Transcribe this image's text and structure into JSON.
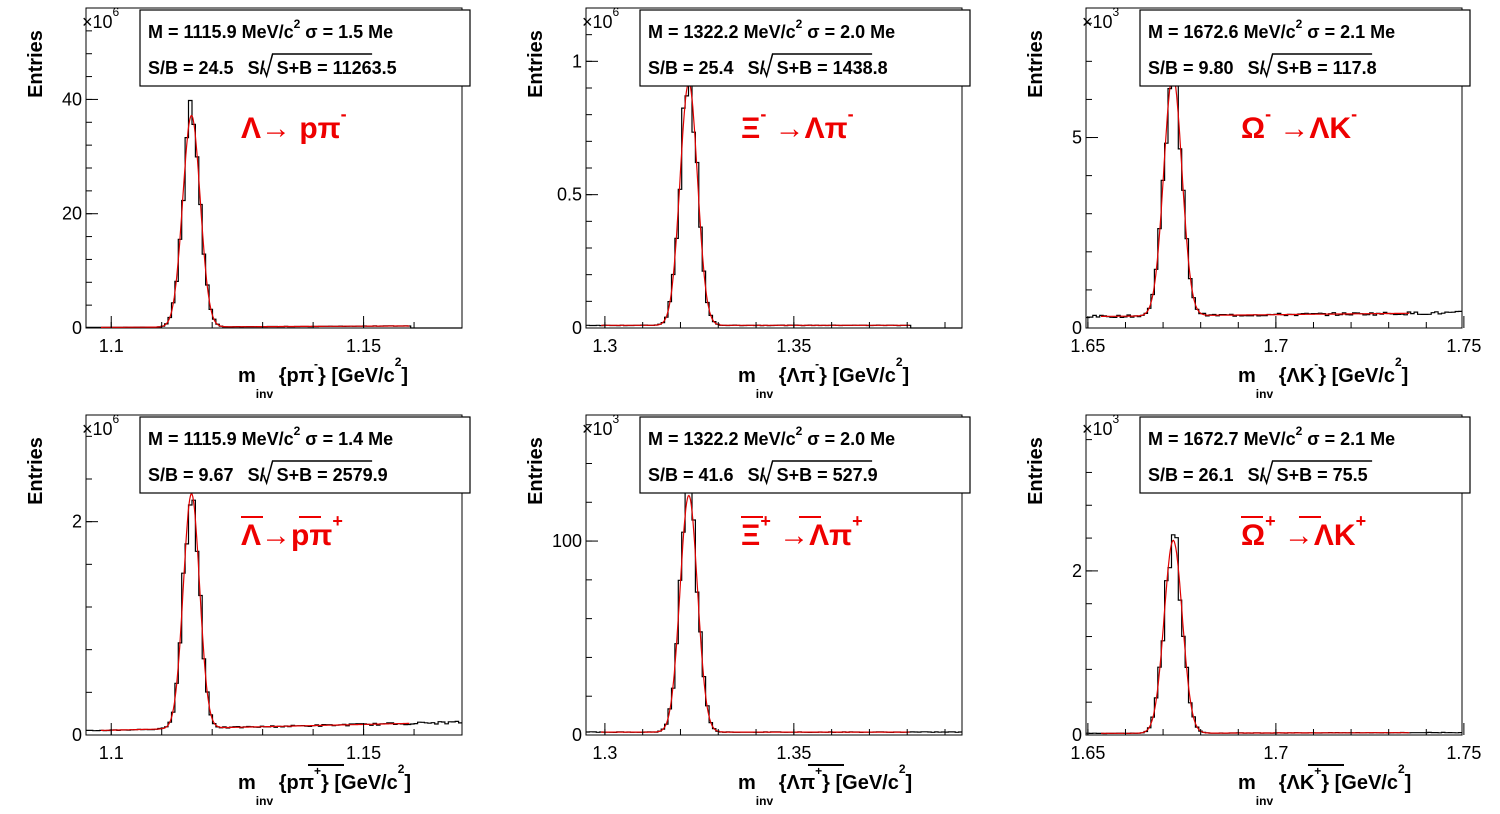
{
  "chart_data": [
    {
      "type": "line",
      "ylabel": "Entries",
      "xlabel": {
        "m": "m",
        "sub": "inv",
        "arg": "{pπ",
        "argsup": "-",
        "tail": "} [GeV/c",
        "tailsup": "2",
        "end": "]"
      },
      "xlim": [
        1.095,
        1.1695
      ],
      "xticks": [
        {
          "v": 1.1,
          "label": "1.1"
        },
        {
          "v": 1.15,
          "label": "1.15"
        }
      ],
      "ylim": [
        0,
        56
      ],
      "yticks": [
        {
          "v": 0,
          "label": "0"
        },
        {
          "v": 20,
          "label": "20"
        },
        {
          "v": 40,
          "label": "40"
        }
      ],
      "multiplier": {
        "base": "×10",
        "exp": "6"
      },
      "stats": {
        "line1": "M = 1115.9 MeV/c",
        "line1sup": "2",
        "line1b": "σ = 1.5 Me",
        "line2a": "S/B = 24.5",
        "line2b": "S/",
        "line2c": "S+B = 11263.5"
      },
      "decay": {
        "parts": [
          {
            "t": "Λ→ pπ",
            "bar": false
          }
        ],
        "sup": "-"
      },
      "mean": 1.1159,
      "sigma": 0.0015,
      "peak": 37,
      "bkg": [
        0.1,
        0.4
      ],
      "series": [
        {
          "values": "histogram and fit"
        }
      ]
    },
    {
      "type": "line",
      "ylabel": "Entries",
      "xlabel": {
        "m": "m",
        "sub": "inv",
        "arg": "{Λπ",
        "argsup": "-",
        "tail": "} [GeV/c",
        "tailsup": "2",
        "end": "]"
      },
      "xlim": [
        1.295,
        1.3945
      ],
      "xticks": [
        {
          "v": 1.3,
          "label": "1.3"
        },
        {
          "v": 1.35,
          "label": "1.35"
        }
      ],
      "ylim": [
        0,
        1.2
      ],
      "yticks": [
        {
          "v": 0,
          "label": "0"
        },
        {
          "v": 0.5,
          "label": "0.5"
        },
        {
          "v": 1,
          "label": "1"
        }
      ],
      "multiplier": {
        "base": "×10",
        "exp": "6"
      },
      "stats": {
        "line1": "M = 1322.2 MeV/c",
        "line1sup": "2",
        "line1b": "σ = 2.0 Me",
        "line2a": "S/B = 25.4",
        "line2b": "S/",
        "line2c": "S+B = 1438.8"
      },
      "decay": {
        "parts": [
          {
            "t": "Ξ",
            "bar": false,
            "sup": "-"
          },
          {
            "t": "→Λπ",
            "bar": false
          }
        ],
        "sup": "-"
      },
      "mean": 1.3222,
      "sigma": 0.002,
      "peak": 0.91,
      "bkg": [
        0.01,
        0.01
      ],
      "series": [
        {
          "values": "histogram and fit"
        }
      ]
    },
    {
      "type": "line",
      "ylabel": "Entries",
      "xlabel": {
        "m": "m",
        "sub": "inv",
        "arg": "{ΛK",
        "argsup": "-",
        "tail": "} [GeV/c",
        "tailsup": "2",
        "end": "]"
      },
      "xlim": [
        1.6495,
        1.7495
      ],
      "xticks": [
        {
          "v": 1.65,
          "label": "1.65"
        },
        {
          "v": 1.7,
          "label": "1.7"
        },
        {
          "v": 1.75,
          "label": "1.75"
        }
      ],
      "ylim": [
        0,
        8.4
      ],
      "yticks": [
        {
          "v": 0,
          "label": "0"
        },
        {
          "v": 5,
          "label": "5"
        }
      ],
      "multiplier": {
        "base": "×10",
        "exp": "3"
      },
      "stats": {
        "line1": "M = 1672.6 MeV/c",
        "line1sup": "2",
        "line1b": "σ = 2.1 Me",
        "line2a": "S/B = 9.80",
        "line2b": "S/",
        "line2c": "S+B = 117.8"
      },
      "decay": {
        "parts": [
          {
            "t": "Ω",
            "bar": false,
            "sup": "-"
          },
          {
            "t": "→ΛK",
            "bar": false
          }
        ],
        "sup": "-"
      },
      "mean": 1.6726,
      "sigma": 0.0021,
      "peak": 6.3,
      "bkg": [
        0.3,
        0.4
      ],
      "series": [
        {
          "values": "histogram and fit"
        }
      ]
    },
    {
      "type": "line",
      "ylabel": "Entries",
      "xlabel": {
        "m": "m",
        "sub": "inv",
        "arg": "{pπ",
        "argsup": "+",
        "tail": "} [GeV/c",
        "tailsup": "2",
        "end": "]",
        "bar": true
      },
      "xlim": [
        1.095,
        1.1695
      ],
      "xticks": [
        {
          "v": 1.1,
          "label": "1.1"
        },
        {
          "v": 1.15,
          "label": "1.15"
        }
      ],
      "ylim": [
        0,
        3.0
      ],
      "yticks": [
        {
          "v": 0,
          "label": "0"
        },
        {
          "v": 2,
          "label": "2"
        }
      ],
      "multiplier": {
        "base": "×10",
        "exp": "6"
      },
      "stats": {
        "line1": "M = 1115.9 MeV/c",
        "line1sup": "2",
        "line1b": "σ = 1.4 Me",
        "line2a": "S/B = 9.67",
        "line2b": "S/",
        "line2c": "S+B = 2579.9"
      },
      "decay": {
        "parts": [
          {
            "t": "Λ→pπ",
            "bar": true
          }
        ],
        "sup": "+"
      },
      "mean": 1.1159,
      "sigma": 0.0014,
      "peak": 2.2,
      "bkg": [
        0.04,
        0.12
      ],
      "series": [
        {
          "values": "histogram and fit"
        }
      ]
    },
    {
      "type": "line",
      "ylabel": "Entries",
      "xlabel": {
        "m": "m",
        "sub": "inv",
        "arg": "{Λπ",
        "argsup": "+",
        "tail": "} [GeV/c",
        "tailsup": "2",
        "end": "]",
        "bar": true
      },
      "xlim": [
        1.295,
        1.3945
      ],
      "xticks": [
        {
          "v": 1.3,
          "label": "1.3"
        },
        {
          "v": 1.35,
          "label": "1.35"
        }
      ],
      "ylim": [
        0,
        165
      ],
      "yticks": [
        {
          "v": 0,
          "label": "0"
        },
        {
          "v": 100,
          "label": "100"
        }
      ],
      "multiplier": {
        "base": "×10",
        "exp": "3"
      },
      "stats": {
        "line1": "M = 1322.2 MeV/c",
        "line1sup": "2",
        "line1b": "σ = 2.0 Me",
        "line2a": "S/B = 41.6",
        "line2b": "S/",
        "line2c": "S+B = 527.9"
      },
      "decay": {
        "parts": [
          {
            "t": "Ξ",
            "bar": true,
            "sup": "+"
          },
          {
            "t": "→Λπ",
            "bar": true
          }
        ],
        "sup": "+"
      },
      "mean": 1.3222,
      "sigma": 0.002,
      "peak": 122,
      "bkg": [
        1.5,
        1.5
      ],
      "series": [
        {
          "values": "histogram and fit"
        }
      ]
    },
    {
      "type": "line",
      "ylabel": "Entries",
      "xlabel": {
        "m": "m",
        "sub": "inv",
        "arg": "{ΛK",
        "argsup": "+",
        "tail": "} [GeV/c",
        "tailsup": "2",
        "end": "]",
        "bar": true
      },
      "xlim": [
        1.6495,
        1.7495
      ],
      "xticks": [
        {
          "v": 1.65,
          "label": "1.65"
        },
        {
          "v": 1.7,
          "label": "1.7"
        },
        {
          "v": 1.75,
          "label": "1.75"
        }
      ],
      "ylim": [
        0,
        3.9
      ],
      "yticks": [
        {
          "v": 0,
          "label": "0"
        },
        {
          "v": 2,
          "label": "2"
        }
      ],
      "multiplier": {
        "base": "×10",
        "exp": "3"
      },
      "stats": {
        "line1": "M = 1672.7 MeV/c",
        "line1sup": "2",
        "line1b": "σ = 2.1 Me",
        "line2a": "S/B = 26.1",
        "line2b": "S/",
        "line2c": "S+B = 75.5"
      },
      "decay": {
        "parts": [
          {
            "t": "Ω",
            "bar": true,
            "sup": "+"
          },
          {
            "t": "→ΛK",
            "bar": true
          }
        ],
        "sup": "+"
      },
      "mean": 1.6727,
      "sigma": 0.0021,
      "peak": 2.35,
      "bkg": [
        0.02,
        0.03
      ],
      "series": [
        {
          "values": "histogram and fit"
        }
      ]
    }
  ]
}
